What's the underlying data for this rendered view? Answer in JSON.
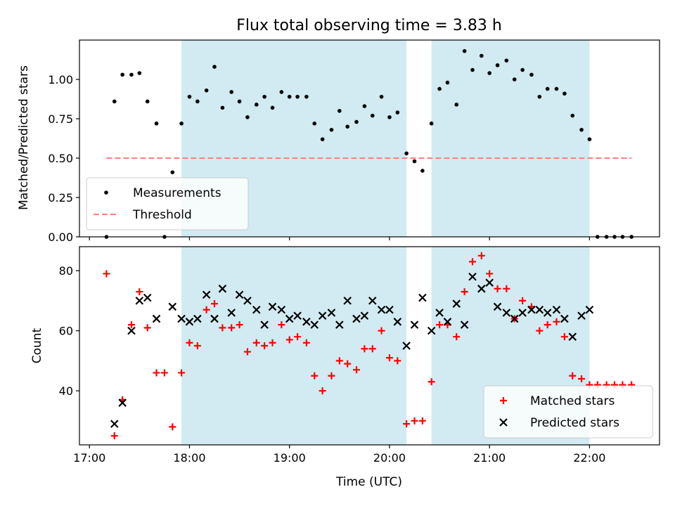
{
  "chart_data": {
    "title": "Flux total observing time = 3.83 h",
    "xlabel": "Time (UTC)",
    "x_unit": "hours UTC",
    "xlim": [
      16.9,
      22.7
    ],
    "x_ticks": [
      {
        "value": 17,
        "label": "17:00"
      },
      {
        "value": 18,
        "label": "18:00"
      },
      {
        "value": 19,
        "label": "19:00"
      },
      {
        "value": 20,
        "label": "20:00"
      },
      {
        "value": 21,
        "label": "21:00"
      },
      {
        "value": 22,
        "label": "22:00"
      }
    ],
    "observing_windows": [
      [
        17.92,
        20.17
      ],
      [
        20.42,
        22.0
      ]
    ],
    "window_color": "#add8e6",
    "panels": [
      {
        "type": "scatter",
        "ylabel": "Matched/Predicted stars",
        "ylim": [
          0,
          1.25
        ],
        "y_ticks": [
          "0.00",
          "0.25",
          "0.50",
          "0.75",
          "1.00"
        ],
        "legend": {
          "position": "lower-left",
          "entries": [
            "Measurements",
            "Threshold"
          ]
        },
        "series": [
          {
            "name": "Measurements",
            "marker": "dot",
            "color": "#000000",
            "points": [
              [
                17.17,
                0.0
              ],
              [
                17.25,
                0.86
              ],
              [
                17.33,
                1.03
              ],
              [
                17.42,
                1.03
              ],
              [
                17.5,
                1.04
              ],
              [
                17.58,
                0.86
              ],
              [
                17.67,
                0.72
              ],
              [
                17.75,
                0.0
              ],
              [
                17.83,
                0.41
              ],
              [
                17.92,
                0.72
              ],
              [
                18.0,
                0.89
              ],
              [
                18.08,
                0.86
              ],
              [
                18.17,
                0.93
              ],
              [
                18.25,
                1.08
              ],
              [
                18.33,
                0.82
              ],
              [
                18.42,
                0.92
              ],
              [
                18.5,
                0.86
              ],
              [
                18.58,
                0.76
              ],
              [
                18.67,
                0.84
              ],
              [
                18.75,
                0.89
              ],
              [
                18.83,
                0.82
              ],
              [
                18.92,
                0.92
              ],
              [
                19.0,
                0.89
              ],
              [
                19.08,
                0.89
              ],
              [
                19.17,
                0.89
              ],
              [
                19.25,
                0.72
              ],
              [
                19.33,
                0.62
              ],
              [
                19.42,
                0.68
              ],
              [
                19.5,
                0.8
              ],
              [
                19.58,
                0.7
              ],
              [
                19.67,
                0.73
              ],
              [
                19.75,
                0.83
              ],
              [
                19.83,
                0.77
              ],
              [
                19.92,
                0.89
              ],
              [
                20.0,
                0.76
              ],
              [
                20.08,
                0.79
              ],
              [
                20.17,
                0.53
              ],
              [
                20.25,
                0.48
              ],
              [
                20.33,
                0.42
              ],
              [
                20.42,
                0.72
              ],
              [
                20.5,
                0.94
              ],
              [
                20.58,
                0.98
              ],
              [
                20.67,
                0.84
              ],
              [
                20.75,
                1.18
              ],
              [
                20.83,
                1.06
              ],
              [
                20.92,
                1.15
              ],
              [
                21.0,
                1.04
              ],
              [
                21.08,
                1.09
              ],
              [
                21.17,
                1.12
              ],
              [
                21.25,
                1.0
              ],
              [
                21.33,
                1.06
              ],
              [
                21.42,
                1.03
              ],
              [
                21.5,
                0.89
              ],
              [
                21.58,
                0.94
              ],
              [
                21.67,
                0.94
              ],
              [
                21.75,
                0.91
              ],
              [
                21.83,
                0.77
              ],
              [
                21.92,
                0.68
              ],
              [
                22.0,
                0.62
              ],
              [
                22.08,
                0.0
              ],
              [
                22.17,
                0.0
              ],
              [
                22.25,
                0.0
              ],
              [
                22.33,
                0.0
              ],
              [
                22.42,
                0.0
              ]
            ]
          },
          {
            "name": "Threshold",
            "marker": "dashed-line",
            "color": "#ff7f7f",
            "points": [
              [
                17.17,
                0.5
              ],
              [
                22.42,
                0.5
              ]
            ]
          }
        ]
      },
      {
        "type": "scatter",
        "ylabel": "Count",
        "ylim": [
          22,
          88
        ],
        "y_ticks": [
          "40",
          "60",
          "80"
        ],
        "legend": {
          "position": "lower-right",
          "entries": [
            "Matched stars",
            "Predicted stars"
          ]
        },
        "series": [
          {
            "name": "Matched stars",
            "marker": "plus",
            "color": "#ff0000",
            "points": [
              [
                17.17,
                79
              ],
              [
                17.25,
                25
              ],
              [
                17.33,
                37
              ],
              [
                17.42,
                62
              ],
              [
                17.5,
                73
              ],
              [
                17.58,
                61
              ],
              [
                17.67,
                46
              ],
              [
                17.75,
                46
              ],
              [
                17.83,
                28
              ],
              [
                17.92,
                46
              ],
              [
                18.0,
                56
              ],
              [
                18.08,
                55
              ],
              [
                18.17,
                67
              ],
              [
                18.25,
                69
              ],
              [
                18.33,
                61
              ],
              [
                18.42,
                61
              ],
              [
                18.5,
                62
              ],
              [
                18.58,
                53
              ],
              [
                18.67,
                56
              ],
              [
                18.75,
                55
              ],
              [
                18.83,
                56
              ],
              [
                18.92,
                62
              ],
              [
                19.0,
                57
              ],
              [
                19.08,
                58
              ],
              [
                19.17,
                56
              ],
              [
                19.25,
                45
              ],
              [
                19.33,
                40
              ],
              [
                19.42,
                45
              ],
              [
                19.5,
                50
              ],
              [
                19.58,
                49
              ],
              [
                19.67,
                47
              ],
              [
                19.75,
                54
              ],
              [
                19.83,
                54
              ],
              [
                19.92,
                60
              ],
              [
                20.0,
                51
              ],
              [
                20.08,
                50
              ],
              [
                20.17,
                29
              ],
              [
                20.25,
                30
              ],
              [
                20.33,
                30
              ],
              [
                20.42,
                43
              ],
              [
                20.5,
                62
              ],
              [
                20.58,
                62
              ],
              [
                20.67,
                58
              ],
              [
                20.75,
                73
              ],
              [
                20.83,
                83
              ],
              [
                20.92,
                85
              ],
              [
                21.0,
                79
              ],
              [
                21.08,
                74
              ],
              [
                21.17,
                74
              ],
              [
                21.25,
                64
              ],
              [
                21.33,
                70
              ],
              [
                21.42,
                68
              ],
              [
                21.5,
                60
              ],
              [
                21.58,
                62
              ],
              [
                21.67,
                63
              ],
              [
                21.75,
                58
              ],
              [
                21.83,
                45
              ],
              [
                21.92,
                44
              ],
              [
                22.0,
                42
              ],
              [
                22.08,
                42
              ],
              [
                22.17,
                42
              ],
              [
                22.25,
                42
              ],
              [
                22.33,
                42
              ],
              [
                22.42,
                42
              ]
            ]
          },
          {
            "name": "Predicted stars",
            "marker": "x",
            "color": "#000000",
            "points": [
              [
                17.25,
                29
              ],
              [
                17.33,
                36
              ],
              [
                17.42,
                60
              ],
              [
                17.5,
                70
              ],
              [
                17.58,
                71
              ],
              [
                17.67,
                64
              ],
              [
                17.83,
                68
              ],
              [
                17.92,
                64
              ],
              [
                18.0,
                63
              ],
              [
                18.08,
                64
              ],
              [
                18.17,
                72
              ],
              [
                18.25,
                64
              ],
              [
                18.33,
                74
              ],
              [
                18.42,
                66
              ],
              [
                18.5,
                72
              ],
              [
                18.58,
                70
              ],
              [
                18.67,
                67
              ],
              [
                18.75,
                62
              ],
              [
                18.83,
                68
              ],
              [
                18.92,
                67
              ],
              [
                19.0,
                64
              ],
              [
                19.08,
                65
              ],
              [
                19.17,
                63
              ],
              [
                19.25,
                62
              ],
              [
                19.33,
                65
              ],
              [
                19.42,
                66
              ],
              [
                19.5,
                62
              ],
              [
                19.58,
                70
              ],
              [
                19.67,
                64
              ],
              [
                19.75,
                65
              ],
              [
                19.83,
                70
              ],
              [
                19.92,
                67
              ],
              [
                20.0,
                67
              ],
              [
                20.08,
                63
              ],
              [
                20.17,
                55
              ],
              [
                20.25,
                62
              ],
              [
                20.33,
                71
              ],
              [
                20.42,
                60
              ],
              [
                20.5,
                66
              ],
              [
                20.58,
                63
              ],
              [
                20.67,
                69
              ],
              [
                20.75,
                62
              ],
              [
                20.83,
                78
              ],
              [
                20.92,
                74
              ],
              [
                21.0,
                76
              ],
              [
                21.08,
                68
              ],
              [
                21.17,
                66
              ],
              [
                21.25,
                64
              ],
              [
                21.33,
                66
              ],
              [
                21.42,
                67
              ],
              [
                21.5,
                67
              ],
              [
                21.58,
                66
              ],
              [
                21.67,
                67
              ],
              [
                21.75,
                64
              ],
              [
                21.83,
                58
              ],
              [
                21.92,
                65
              ],
              [
                22.0,
                67
              ]
            ]
          }
        ]
      }
    ]
  }
}
